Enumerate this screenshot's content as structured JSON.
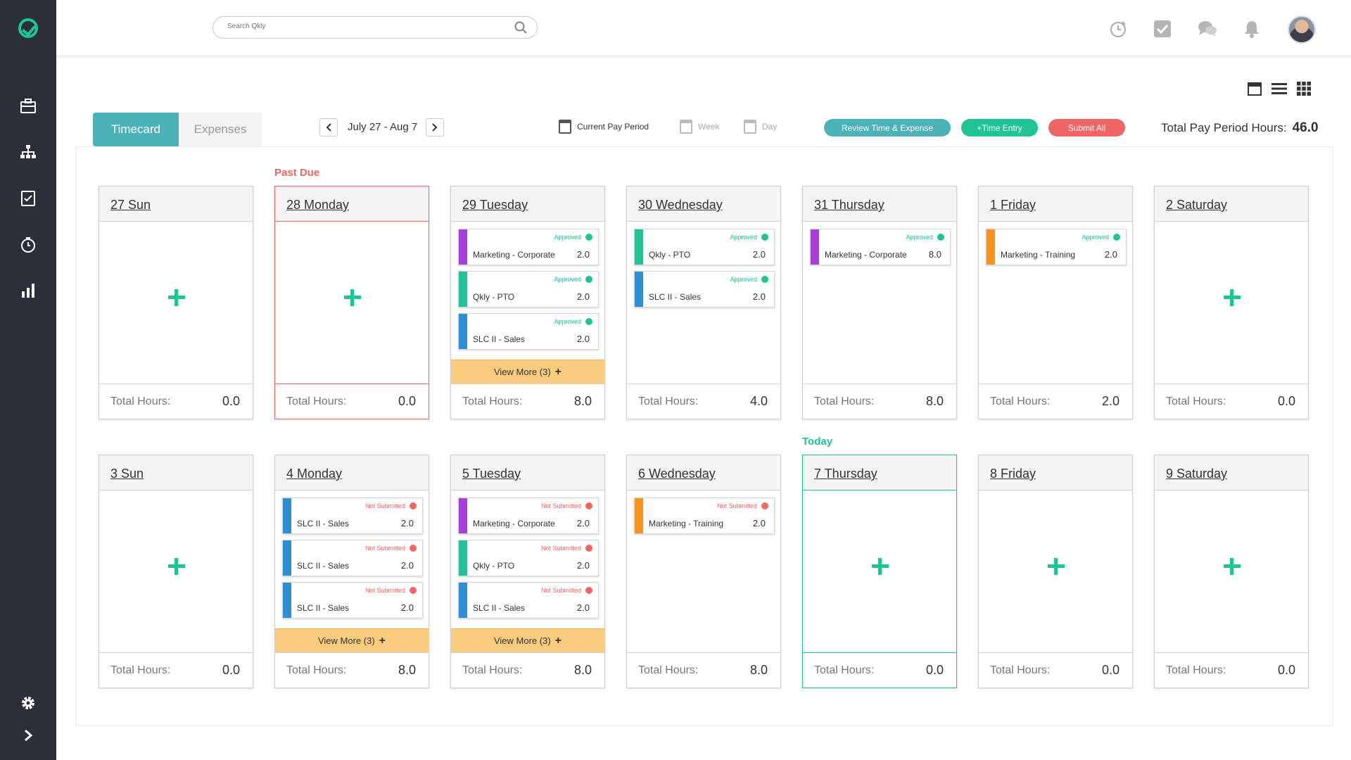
{
  "header": {
    "search_placeholder": "Search Qkly"
  },
  "tabs": {
    "timecard": "Timecard",
    "expenses": "Expenses"
  },
  "date_range": "July 27 - Aug 7",
  "period_options": {
    "current": "Current Pay Period",
    "week": "Week",
    "day": "Day"
  },
  "actions": {
    "review": "Review Time & Expense",
    "time_entry": "+Time Entry",
    "submit_all": "Submit All"
  },
  "total_pay_period": {
    "label": "Total Pay Period Hours:",
    "value": "46.0"
  },
  "labels": {
    "past_due": "Past Due",
    "today": "Today",
    "total_hours": "Total Hours:",
    "view_more": "View More (3)",
    "plus": "+"
  },
  "colors": {
    "accent": "#1fc396",
    "teal": "#4bb2ba",
    "danger": "#f06666",
    "purple": "#a83fd8",
    "green": "#1fc396",
    "blue": "#2d8fd4",
    "orange": "#f7931e",
    "view_more": "#fbcb7e"
  },
  "week1": [
    {
      "title": "27 Sun",
      "total": "0.0"
    },
    {
      "title": "28 Monday",
      "total": "0.0"
    },
    {
      "title": "29 Tuesday",
      "total": "8.0",
      "entries": [
        {
          "project": "Marketing - Corporate",
          "hours": "2.0",
          "status": "Approved"
        },
        {
          "project": "Qkly - PTO",
          "hours": "2.0",
          "status": "Approved"
        },
        {
          "project": "SLC II - Sales",
          "hours": "2.0",
          "status": "Approved"
        }
      ]
    },
    {
      "title": "30 Wednesday",
      "total": "4.0",
      "entries": [
        {
          "project": "Qkly - PTO",
          "hours": "2.0",
          "status": "Approved"
        },
        {
          "project": "SLC II - Sales",
          "hours": "2.0",
          "status": "Approved"
        }
      ]
    },
    {
      "title": "31 Thursday",
      "total": "8.0",
      "entries": [
        {
          "project": "Marketing - Corporate",
          "hours": "8.0",
          "status": "Approved"
        }
      ]
    },
    {
      "title": "1 Friday",
      "total": "2.0",
      "entries": [
        {
          "project": "Marketing - Training",
          "hours": "2.0",
          "status": "Approved"
        }
      ]
    },
    {
      "title": "2 Saturday",
      "total": "0.0"
    }
  ],
  "week2": [
    {
      "title": "3 Sun",
      "total": "0.0"
    },
    {
      "title": "4 Monday",
      "total": "8.0",
      "entries": [
        {
          "project": "SLC II - Sales",
          "hours": "2.0",
          "status": "Not Submitted"
        },
        {
          "project": "SLC II - Sales",
          "hours": "2.0",
          "status": "Not Submitted"
        },
        {
          "project": "SLC II - Sales",
          "hours": "2.0",
          "status": "Not Submitted"
        }
      ]
    },
    {
      "title": "5 Tuesday",
      "total": "8.0",
      "entries": [
        {
          "project": "Marketing - Corporate",
          "hours": "2.0",
          "status": "Not Submitted"
        },
        {
          "project": "Qkly - PTO",
          "hours": "2.0",
          "status": "Not Submitted"
        },
        {
          "project": "SLC II - Sales",
          "hours": "2.0",
          "status": "Not Submitted"
        }
      ]
    },
    {
      "title": "6 Wednesday",
      "total": "8.0",
      "entries": [
        {
          "project": "Marketing - Training",
          "hours": "2.0",
          "status": "Not Submitted"
        }
      ]
    },
    {
      "title": "7 Thursday",
      "total": "0.0"
    },
    {
      "title": "8 Friday",
      "total": "0.0"
    },
    {
      "title": "9 Saturday",
      "total": "0.0"
    }
  ]
}
